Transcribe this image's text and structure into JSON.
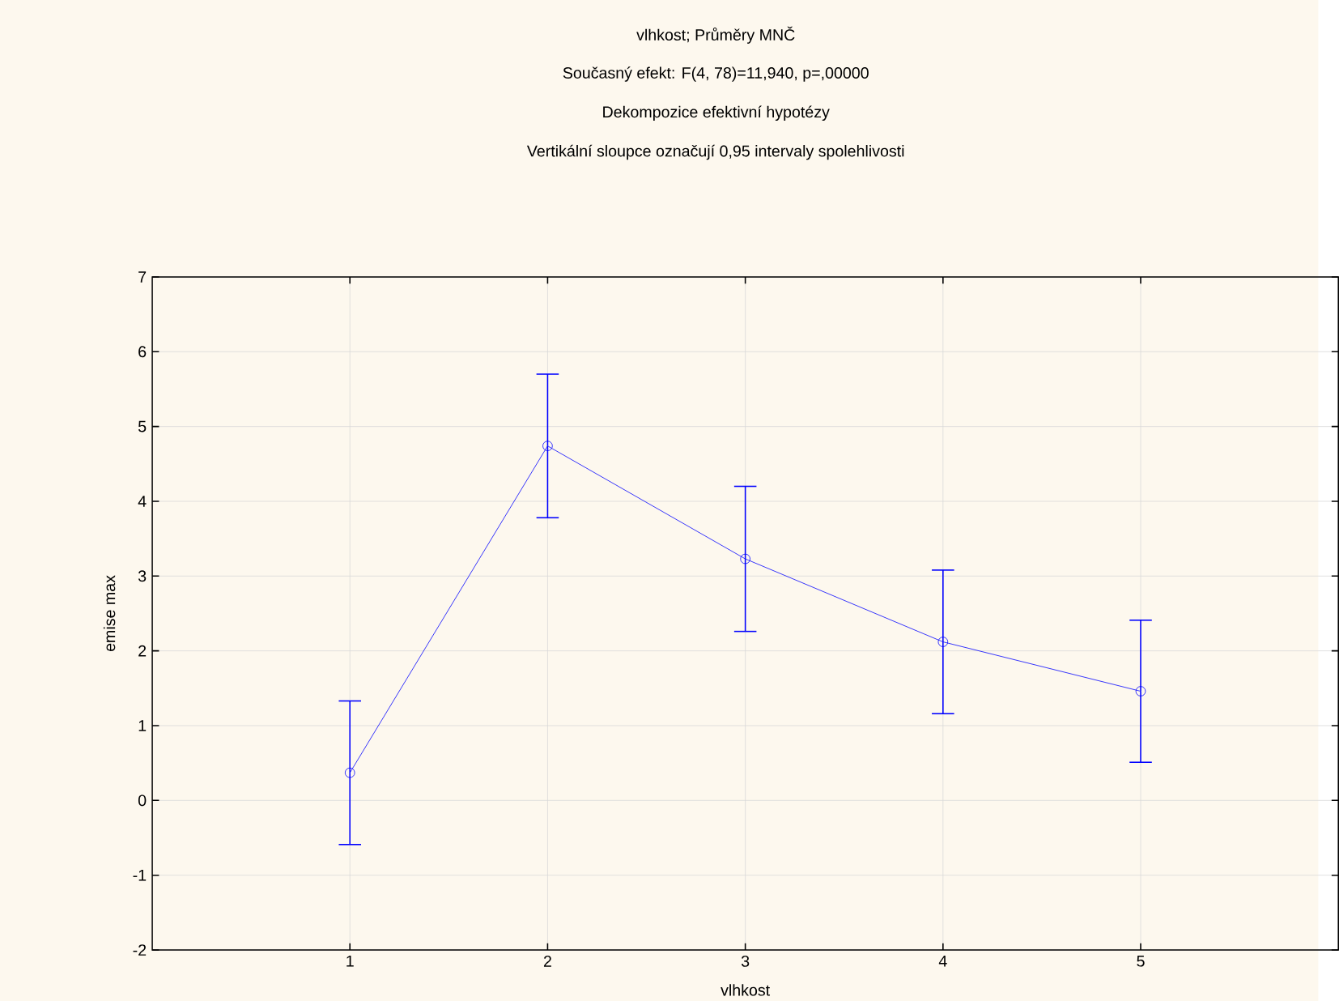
{
  "chart_data": {
    "type": "line",
    "title": "vlhkost; Průměry MNČ",
    "subtitle": "Současný efekt: F(4, 78)=11,940, p=,00000",
    "annotations": [
      "Dekompozice efektivní hypotézy",
      "Vertikální sloupce označují 0,95 intervaly spolehlivosti"
    ],
    "xlabel": "vlhkost",
    "ylabel": "emise max",
    "x": [
      1,
      2,
      3,
      4,
      5
    ],
    "series": [
      {
        "color": "#0000ff",
        "values": [
          0.37,
          4.74,
          3.23,
          2.12,
          1.46
        ],
        "errors": [
          0.96,
          0.96,
          0.97,
          0.96,
          0.95
        ]
      }
    ],
    "xlim": [
      0,
      6
    ],
    "xticks": [
      1,
      2,
      3,
      4,
      5
    ],
    "ylim": [
      -2,
      7
    ],
    "yticks": [
      -2,
      -1,
      0,
      1,
      2,
      3,
      4,
      5,
      6,
      7
    ],
    "grid": true,
    "marker": "circle",
    "line_style": "solid"
  }
}
